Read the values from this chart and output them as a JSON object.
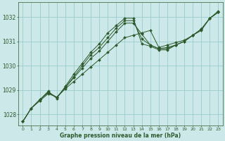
{
  "background_color": "#cce8e8",
  "grid_color": "#99cccc",
  "line_color": "#2d5a2d",
  "xlabel": "Graphe pression niveau de la mer (hPa)",
  "xlim": [
    -0.5,
    23.5
  ],
  "ylim": [
    1027.55,
    1032.6
  ],
  "yticks": [
    1028,
    1029,
    1030,
    1031,
    1032
  ],
  "xticks": [
    0,
    1,
    2,
    3,
    4,
    5,
    6,
    7,
    8,
    9,
    10,
    11,
    12,
    13,
    14,
    15,
    16,
    17,
    18,
    19,
    20,
    21,
    22,
    23
  ],
  "series": [
    [
      1027.7,
      1028.25,
      1028.55,
      1028.85,
      1028.7,
      1029.05,
      1029.35,
      1029.65,
      1029.95,
      1030.25,
      1030.55,
      1030.85,
      1031.15,
      1031.25,
      1031.35,
      1031.45,
      1030.75,
      1030.85,
      1030.95,
      1031.05,
      1031.25,
      1031.45,
      1031.95,
      1032.2
    ],
    [
      1027.7,
      1028.25,
      1028.6,
      1028.9,
      1028.7,
      1029.1,
      1029.5,
      1029.9,
      1030.3,
      1030.6,
      1031.0,
      1031.4,
      1031.75,
      1031.75,
      1031.3,
      1030.85,
      1030.7,
      1030.75,
      1030.85,
      1031.0,
      1031.25,
      1031.5,
      1031.95,
      1032.2
    ],
    [
      1027.7,
      1028.25,
      1028.6,
      1028.9,
      1028.7,
      1029.1,
      1029.55,
      1030.0,
      1030.45,
      1030.75,
      1031.15,
      1031.55,
      1031.85,
      1031.85,
      1031.1,
      1030.85,
      1030.7,
      1030.7,
      1030.85,
      1031.0,
      1031.25,
      1031.5,
      1031.95,
      1032.2
    ],
    [
      1027.7,
      1028.25,
      1028.6,
      1028.95,
      1028.65,
      1029.15,
      1029.65,
      1030.1,
      1030.55,
      1030.9,
      1031.35,
      1031.65,
      1031.95,
      1031.95,
      1030.9,
      1030.8,
      1030.65,
      1030.65,
      1030.85,
      1031.0,
      1031.25,
      1031.5,
      1031.95,
      1032.25
    ]
  ]
}
